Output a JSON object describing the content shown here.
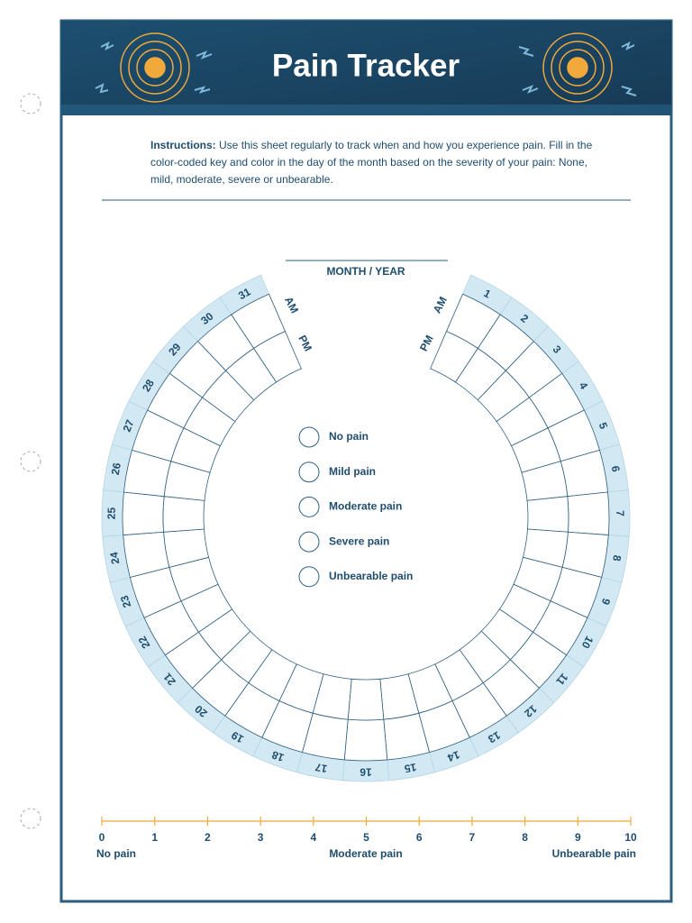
{
  "header": {
    "title": "Pain Tracker"
  },
  "instructions": {
    "label": "Instructions:",
    "text": "Use this sheet regularly to track when and how you experience pain. Fill in the color-coded key and color in the day of the month based on the severity of your pain: None, mild, moderate, severe or unbearable."
  },
  "month_year_label": "MONTH / YEAR",
  "tracker": {
    "am_label": "AM",
    "pm_label": "PM",
    "days": [
      "1",
      "2",
      "3",
      "4",
      "5",
      "6",
      "7",
      "8",
      "9",
      "10",
      "11",
      "12",
      "13",
      "14",
      "15",
      "16",
      "17",
      "18",
      "19",
      "20",
      "21",
      "22",
      "23",
      "24",
      "25",
      "26",
      "27",
      "28",
      "29",
      "30",
      "31"
    ]
  },
  "legend": {
    "items": [
      "No pain",
      "Mild pain",
      "Moderate pain",
      "Severe pain",
      "Unbearable pain"
    ]
  },
  "scale": {
    "ticks": [
      "0",
      "1",
      "2",
      "3",
      "4",
      "5",
      "6",
      "7",
      "8",
      "9",
      "10"
    ],
    "labels": [
      "No pain",
      "Moderate pain",
      "Unbearable pain"
    ]
  }
}
